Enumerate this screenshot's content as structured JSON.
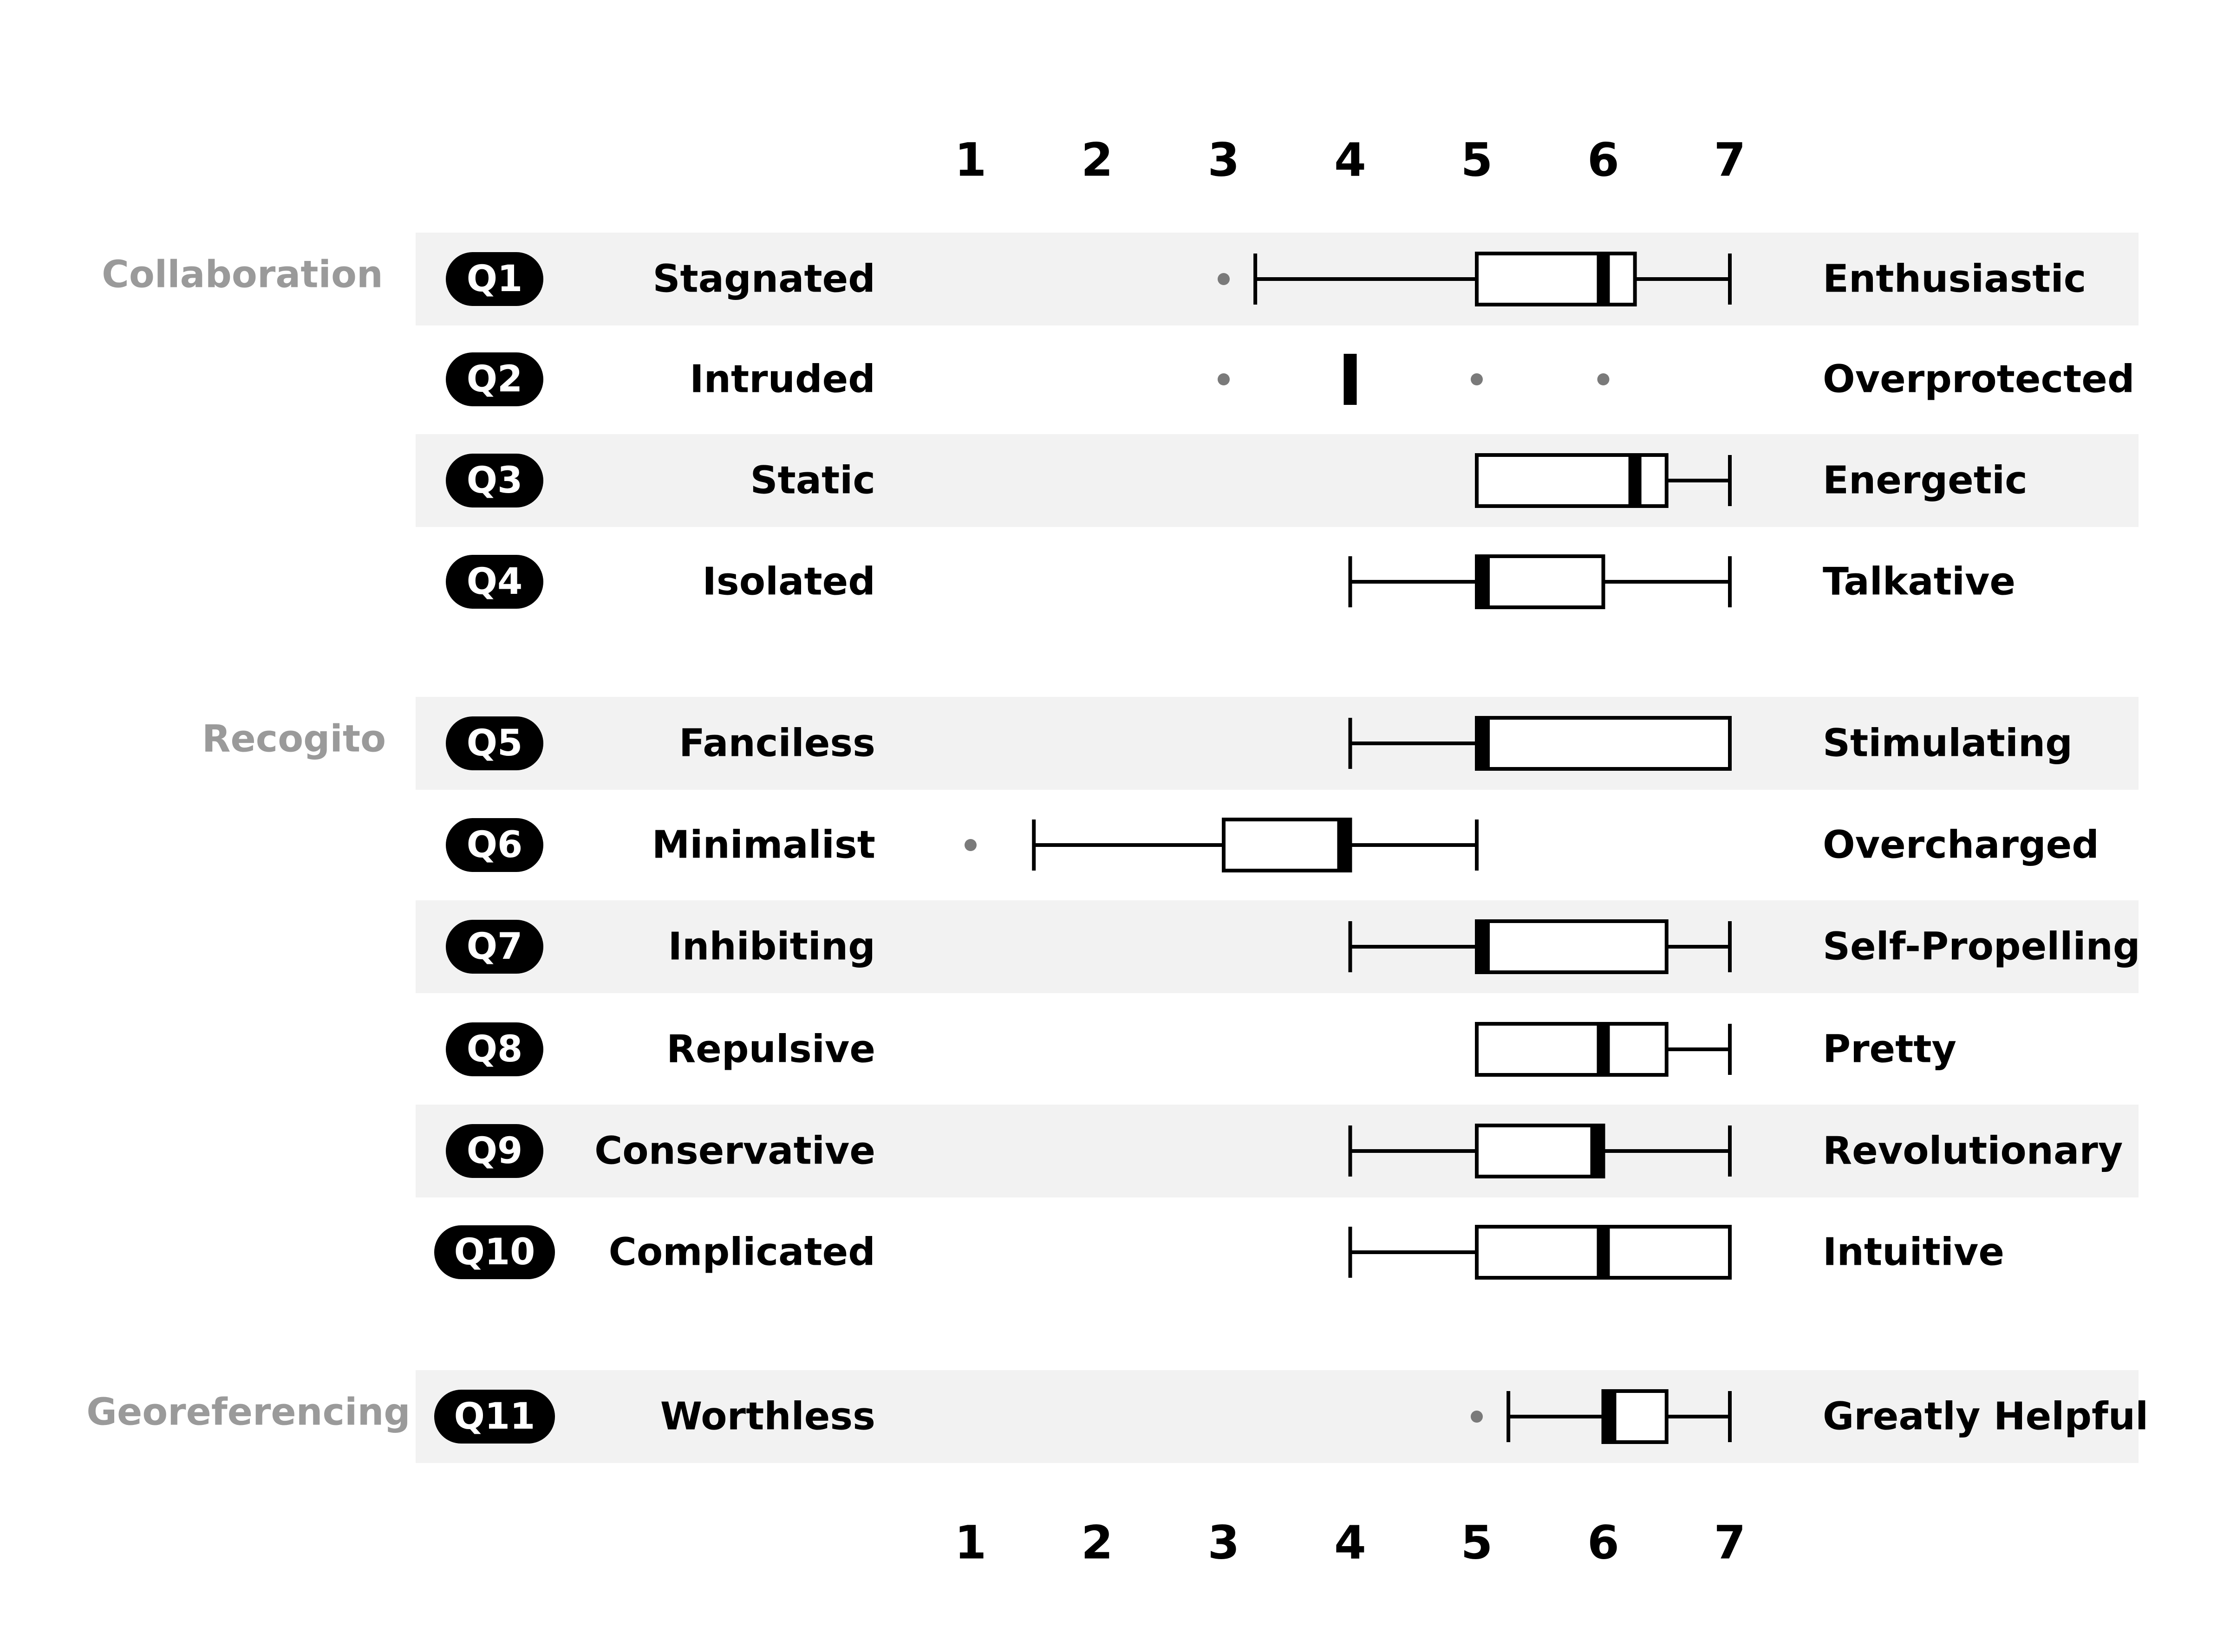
{
  "colors": {
    "stripe": "#f2f2f2",
    "badge": "#000000",
    "badge_text": "#ffffff",
    "group_label": "#9a9a9a",
    "outlier": "#7a7a7a",
    "line": "#000000"
  },
  "chart_data": {
    "type": "box",
    "scale": {
      "min": 1,
      "max": 7,
      "ticks": [
        1,
        2,
        3,
        4,
        5,
        6,
        7
      ],
      "positions": [
        "top",
        "bottom"
      ]
    },
    "grid": false,
    "groups": [
      {
        "name": "Collaboration",
        "items": [
          "Q1",
          "Q2",
          "Q3",
          "Q4"
        ]
      },
      {
        "name": "Recogito",
        "items": [
          "Q5",
          "Q6",
          "Q7",
          "Q8",
          "Q9",
          "Q10"
        ]
      },
      {
        "name": "Georeferencing",
        "items": [
          "Q11"
        ]
      }
    ],
    "items": [
      {
        "id": "Q1",
        "left": "Stagnated",
        "right": "Enthusiastic",
        "striped": true,
        "whisker_low": 3.25,
        "q1": 5.0,
        "median": 6.0,
        "q3": 6.25,
        "whisker_high": 7.0,
        "outliers": [
          3
        ]
      },
      {
        "id": "Q2",
        "left": "Intruded",
        "right": "Overprotected",
        "striped": false,
        "whisker_low": 4.0,
        "q1": 4.0,
        "median": 4.0,
        "q3": 4.0,
        "whisker_high": 4.0,
        "outliers": [
          3,
          5,
          6
        ]
      },
      {
        "id": "Q3",
        "left": "Static",
        "right": "Energetic",
        "striped": true,
        "whisker_low": 5.0,
        "q1": 5.0,
        "median": 6.25,
        "q3": 6.5,
        "whisker_high": 7.0,
        "outliers": []
      },
      {
        "id": "Q4",
        "left": "Isolated",
        "right": "Talkative",
        "striped": false,
        "whisker_low": 4.0,
        "q1": 5.0,
        "median": 5.0,
        "q3": 6.0,
        "whisker_high": 7.0,
        "outliers": []
      },
      {
        "id": "Q5",
        "left": "Fanciless",
        "right": "Stimulating",
        "striped": true,
        "whisker_low": 4.0,
        "q1": 5.0,
        "median": 5.0,
        "q3": 7.0,
        "whisker_high": 7.0,
        "outliers": []
      },
      {
        "id": "Q6",
        "left": "Minimalist",
        "right": "Overcharged",
        "striped": false,
        "whisker_low": 1.5,
        "q1": 3.0,
        "median": 4.0,
        "q3": 4.0,
        "whisker_high": 5.0,
        "outliers": [
          1
        ]
      },
      {
        "id": "Q7",
        "left": "Inhibiting",
        "right": "Self-Propelling",
        "striped": true,
        "whisker_low": 4.0,
        "q1": 5.0,
        "median": 5.0,
        "q3": 6.5,
        "whisker_high": 7.0,
        "outliers": []
      },
      {
        "id": "Q8",
        "left": "Repulsive",
        "right": "Pretty",
        "striped": false,
        "whisker_low": 5.0,
        "q1": 5.0,
        "median": 6.0,
        "q3": 6.5,
        "whisker_high": 7.0,
        "outliers": []
      },
      {
        "id": "Q9",
        "left": "Conservative",
        "right": "Revolutionary",
        "striped": true,
        "whisker_low": 4.0,
        "q1": 5.0,
        "median": 6.0,
        "q3": 6.0,
        "whisker_high": 7.0,
        "outliers": []
      },
      {
        "id": "Q10",
        "left": "Complicated",
        "right": "Intuitive",
        "striped": false,
        "whisker_low": 4.0,
        "q1": 5.0,
        "median": 6.0,
        "q3": 7.0,
        "whisker_high": 7.0,
        "outliers": []
      },
      {
        "id": "Q11",
        "left": "Worthless",
        "right": "Greatly Helpful",
        "striped": true,
        "whisker_low": 5.25,
        "q1": 6.0,
        "median": 6.0,
        "q3": 6.5,
        "whisker_high": 7.0,
        "outliers": [
          5
        ]
      }
    ]
  }
}
